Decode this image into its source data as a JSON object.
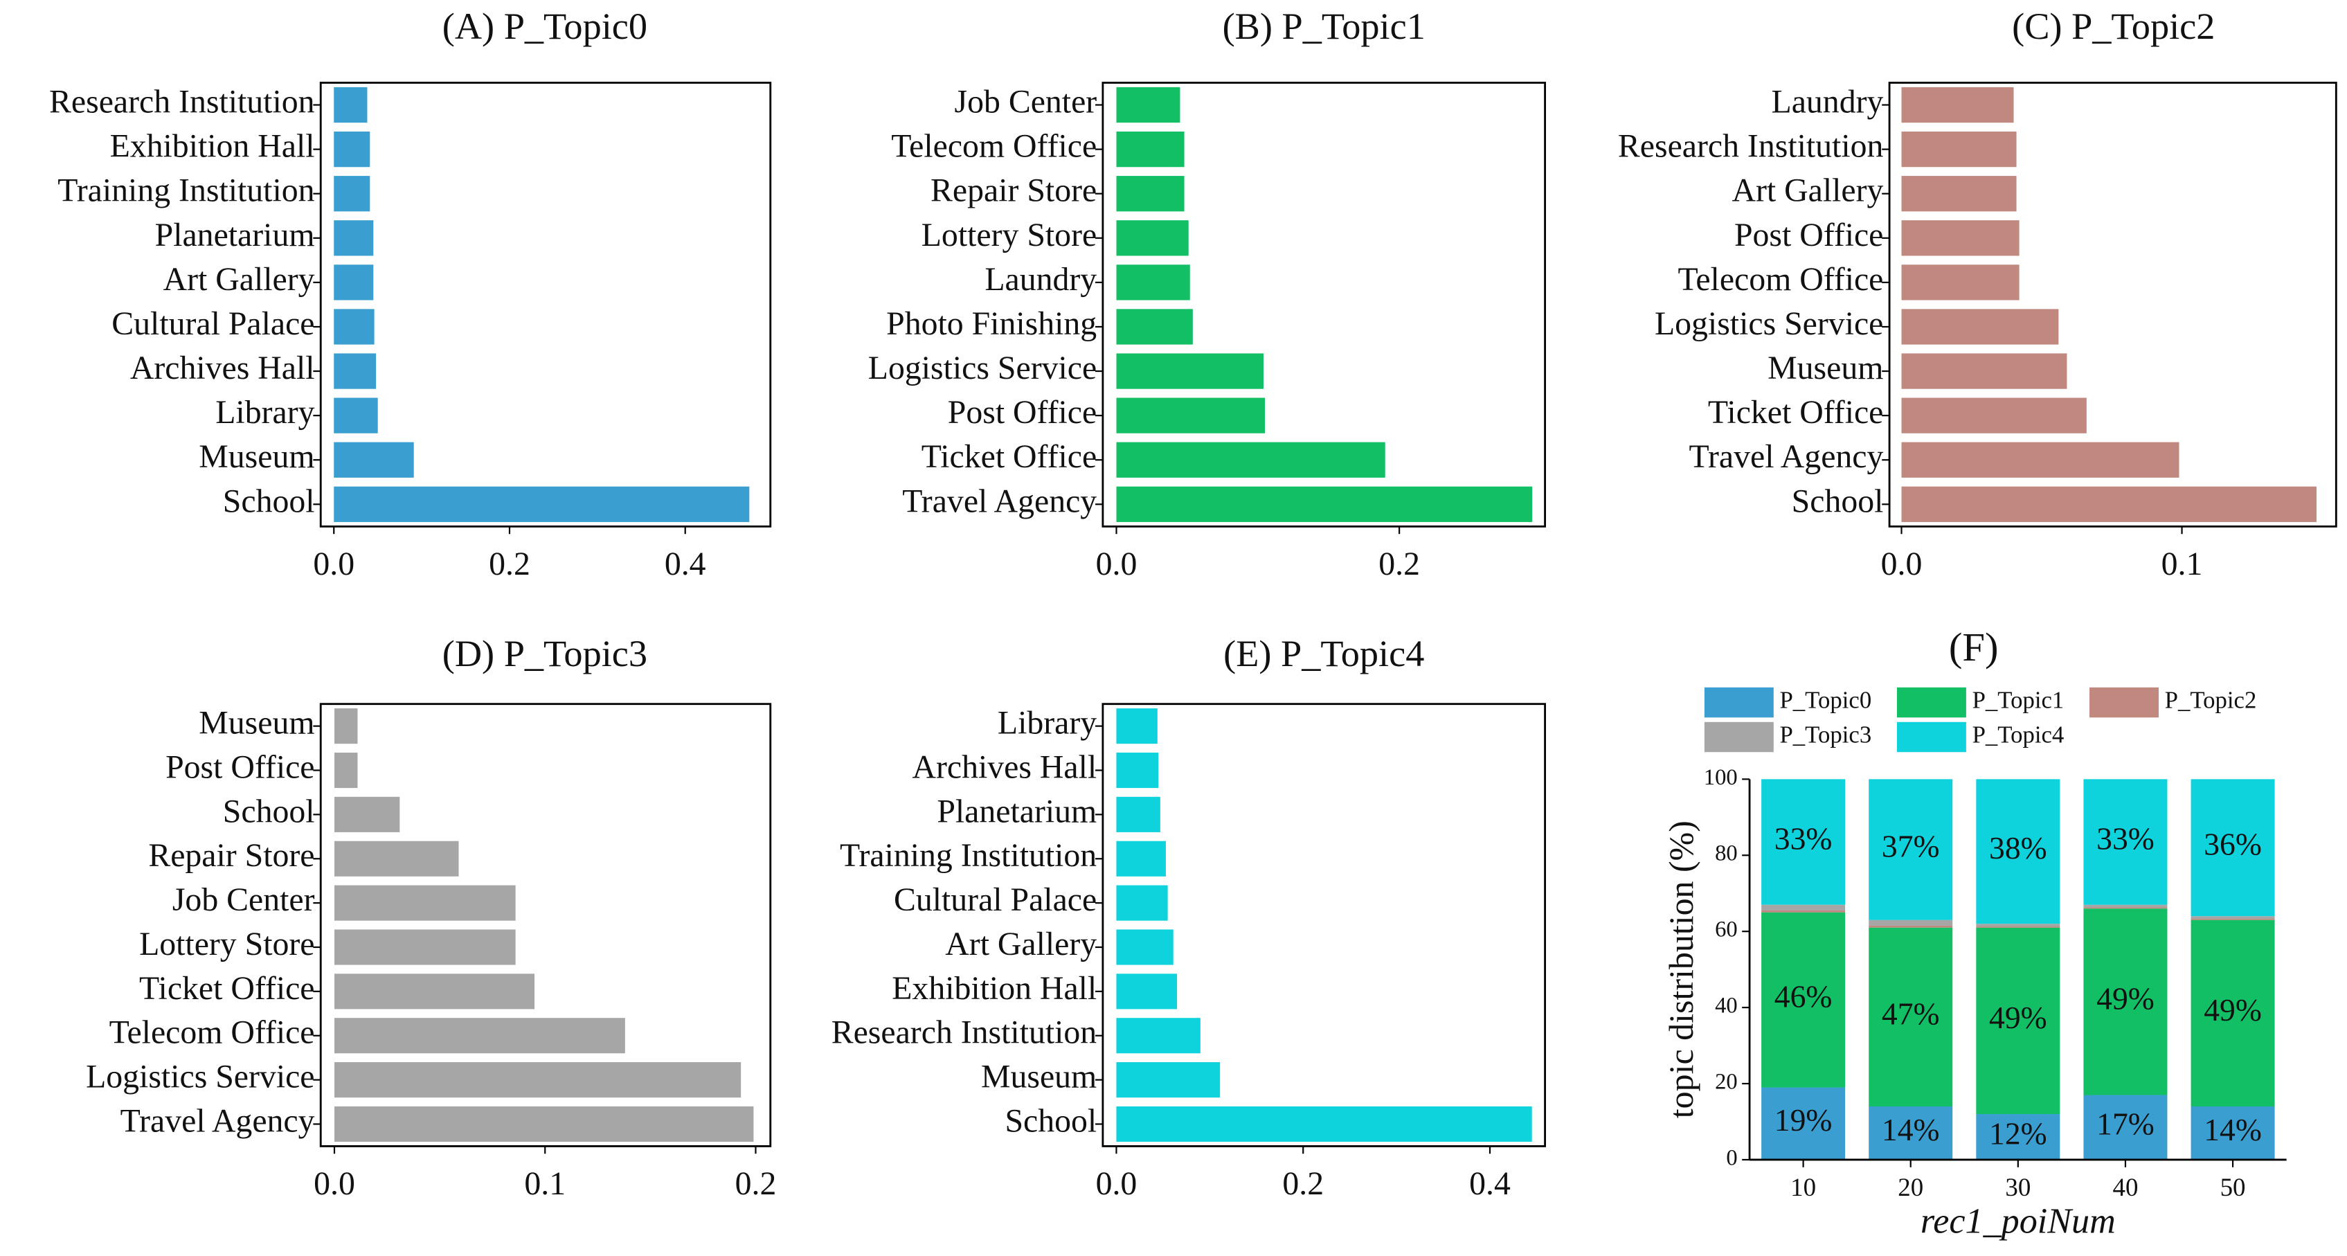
{
  "chart_data": [
    {
      "type": "barh",
      "title": "(A) P_Topic0",
      "color": "#3a9fd0",
      "categories": [
        "Research Institution",
        "Exhibition Hall",
        "Training Institution",
        "Planetarium",
        "Art Gallery",
        "Cultural Palace",
        "Archives Hall",
        "Library",
        "Museum",
        "School"
      ],
      "values": [
        0.038,
        0.041,
        0.041,
        0.045,
        0.045,
        0.046,
        0.048,
        0.05,
        0.091,
        0.473
      ],
      "xlim": [
        -0.015,
        0.497
      ],
      "xticks": [
        {
          "value": 0,
          "label": "0.0"
        },
        0.2,
        0.4
      ]
    },
    {
      "type": "barh",
      "title": "(B) P_Topic1",
      "color": "#12bf64",
      "categories": [
        "Job Center",
        "Telecom Office",
        "Repair Store",
        "Lottery Store",
        "Laundry",
        "Photo Finishing",
        "Logistics Service",
        "Post Office",
        "Ticket Office",
        "Travel Agency"
      ],
      "values": [
        0.045,
        0.048,
        0.048,
        0.051,
        0.052,
        0.054,
        0.104,
        0.105,
        0.19,
        0.294
      ],
      "xlim": [
        -0.0096,
        0.303
      ],
      "xticks": [
        {
          "value": 0,
          "label": "0.0"
        },
        0.2
      ]
    },
    {
      "type": "barh",
      "title": "(C) P_Topic2",
      "color": "#c0887e",
      "categories": [
        "Laundry",
        "Research Institution",
        "Art Gallery",
        "Post Office",
        "Telecom Office",
        "Logistics Service",
        "Museum",
        "Ticket Office",
        "Travel Agency",
        "School"
      ],
      "values": [
        0.04,
        0.041,
        0.041,
        0.042,
        0.042,
        0.056,
        0.059,
        0.066,
        0.099,
        0.148
      ],
      "xlim": [
        -0.0043,
        0.155
      ],
      "xticks": [
        {
          "value": 0,
          "label": "0.0"
        },
        0.1
      ]
    },
    {
      "type": "barh",
      "title": "(D) P_Topic3",
      "color": "#a6a6a6",
      "categories": [
        "Museum",
        "Post Office",
        "School",
        "Repair Store",
        "Job Center",
        "Lottery Store",
        "Ticket Office",
        "Telecom Office",
        "Logistics Service",
        "Travel Agency"
      ],
      "values": [
        0.011,
        0.011,
        0.031,
        0.059,
        0.086,
        0.086,
        0.095,
        0.138,
        0.193,
        0.199
      ],
      "xlim": [
        -0.0065,
        0.207
      ],
      "xticks": [
        {
          "value": 0,
          "label": "0.0"
        },
        0.1,
        0.2
      ]
    },
    {
      "type": "barh",
      "title": "(E) P_Topic4",
      "color": "#0ed2dc",
      "categories": [
        "Library",
        "Archives Hall",
        "Planetarium",
        "Training Institution",
        "Cultural Palace",
        "Art Gallery",
        "Exhibition Hall",
        "Research Institution",
        "Museum",
        "School"
      ],
      "values": [
        0.044,
        0.045,
        0.047,
        0.053,
        0.055,
        0.061,
        0.065,
        0.09,
        0.111,
        0.445
      ],
      "xlim": [
        -0.0145,
        0.459
      ],
      "xticks": [
        {
          "value": 0,
          "label": "0.0"
        },
        0.2,
        0.4
      ]
    },
    {
      "type": "stacked_bar",
      "title": "(F)",
      "x_label": "rec1_poiNum",
      "y_label": "topic distribution (%)",
      "categories": [
        "10",
        "20",
        "30",
        "40",
        "50"
      ],
      "series": [
        {
          "name": "P_Topic0",
          "color": "#3a9fd0",
          "values": [
            19,
            14,
            12,
            17,
            14
          ],
          "value_labels": [
            "19%",
            "14%",
            "12%",
            "17%",
            "14%"
          ]
        },
        {
          "name": "P_Topic1",
          "color": "#12bf64",
          "values": [
            46,
            47,
            49,
            49,
            49
          ],
          "value_labels": [
            "46%",
            "47%",
            "49%",
            "49%",
            "49%"
          ]
        },
        {
          "name": "P_Topic2",
          "color": "#c0887e",
          "values": [
            0.5,
            0.5,
            0.3,
            0.3,
            0.3
          ]
        },
        {
          "name": "P_Topic3",
          "color": "#a6a6a6",
          "values": [
            1.5,
            1.5,
            0.7,
            0.7,
            0.7
          ]
        },
        {
          "name": "P_Topic4",
          "color": "#0ed2dc",
          "values": [
            33,
            37,
            38,
            33,
            36
          ],
          "value_labels": [
            "33%",
            "37%",
            "38%",
            "33%",
            "36%"
          ]
        }
      ],
      "ylim": [
        0,
        100
      ],
      "yticks": [
        0,
        20,
        40,
        60,
        80,
        100
      ],
      "legend": "top"
    }
  ]
}
